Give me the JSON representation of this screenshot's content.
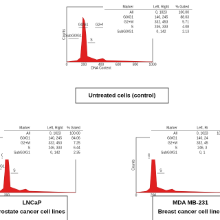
{
  "panels": [
    {
      "y_label": "Counts",
      "x_label": "DNA Content",
      "x_ticks": [
        "0",
        "200",
        "400",
        "600",
        "800",
        "1000"
      ],
      "gates": [
        "SubG0/G1",
        "G0/G1",
        "G2+M",
        "S"
      ],
      "table": {
        "header": [
          "Marker",
          "Left, Right",
          "% Gated"
        ],
        "rows": [
          [
            "All",
            "0, 1023",
            "100.00"
          ],
          [
            "G0/G1",
            "140, 245",
            "88.03"
          ],
          [
            "G2+M",
            "332, 453",
            "5.71"
          ],
          [
            "S",
            "246, 333",
            "4.08"
          ],
          [
            "SubG0/G1",
            "0, 142",
            "2.13"
          ]
        ]
      },
      "caption": [
        "Untreated cells (control)"
      ]
    },
    {
      "y_label": "Counts",
      "x_label": "DNA Content",
      "x_ticks": [
        "0",
        "200"
      ],
      "gates": [
        "SubG0/G1",
        "G0/G1",
        "G2+M",
        "S"
      ],
      "table": {
        "header": [
          "Marker",
          "Left, Right",
          "% Gated"
        ],
        "rows": [
          [
            "All",
            "0, 1023",
            "100.00"
          ],
          [
            "G0/G1",
            "140, 245",
            "84.06"
          ],
          [
            "G2+M",
            "332, 453",
            "7.25"
          ],
          [
            "S",
            "246, 333",
            "6.44"
          ],
          [
            "SubG0/G1",
            "0, 142",
            "2.35"
          ]
        ]
      },
      "caption": [
        "LNCaP",
        "rostate cancer cell lines"
      ]
    },
    {
      "y_label": "Counts",
      "x_label": "DNA Content",
      "x_ticks": [
        "0",
        "200"
      ],
      "gates": [
        "G0/G1",
        "G2+M",
        "S"
      ],
      "table": {
        "header": [
          "Marker",
          "Left, Ri"
        ],
        "rows": [
          [
            "All",
            "0, 1023",
            "100.00"
          ],
          [
            "G0/G1",
            "140, 24"
          ],
          [
            "G2+M",
            "332, 45"
          ],
          [
            "S",
            "246, 3"
          ],
          [
            "SubG0/G1",
            "0, 1"
          ]
        ]
      },
      "caption": [
        "MDA MB-231",
        "Breast cancer cell lines"
      ]
    }
  ]
}
